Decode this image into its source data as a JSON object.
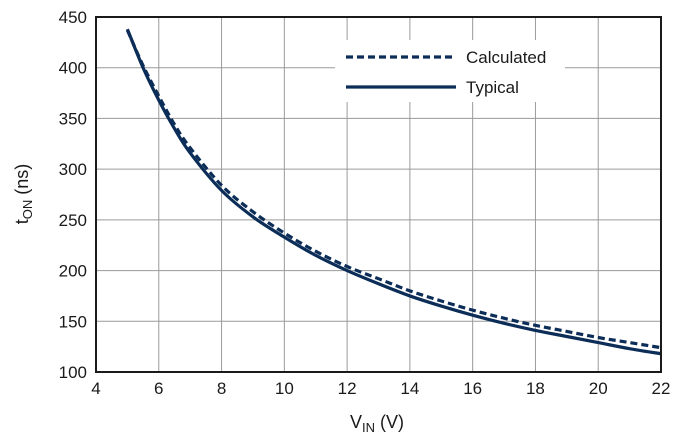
{
  "chart_data": {
    "type": "line",
    "title": "",
    "xlabel_main": "V",
    "xlabel_sub": "IN",
    "xlabel_unit": " (V)",
    "ylabel_main": "t",
    "ylabel_sub": "ON",
    "ylabel_unit": " (ns)",
    "xlim": [
      4,
      22
    ],
    "ylim": [
      100,
      450
    ],
    "xticks": [
      4,
      6,
      8,
      10,
      12,
      14,
      16,
      18,
      20,
      22
    ],
    "yticks": [
      100,
      150,
      200,
      250,
      300,
      350,
      400,
      450
    ],
    "grid": true,
    "legend_position": "top-right",
    "line_color": "#0b2d57",
    "series": [
      {
        "name": "Calculated",
        "style": "dashed",
        "x": [
          5,
          5.5,
          6,
          6.5,
          7,
          8,
          9,
          10,
          11,
          12,
          13,
          14,
          15,
          16,
          17,
          18,
          19,
          20,
          21,
          22
        ],
        "y": [
          437,
          402,
          372,
          344,
          321,
          284,
          258,
          237,
          219,
          204,
          192,
          180,
          170,
          161,
          153,
          146,
          140,
          134,
          129,
          124
        ]
      },
      {
        "name": "Typical",
        "style": "solid",
        "x": [
          5,
          5.5,
          6,
          6.5,
          7,
          8,
          9,
          10,
          11,
          12,
          13,
          14,
          15,
          16,
          17,
          18,
          19,
          20,
          21,
          22
        ],
        "y": [
          438,
          400,
          368,
          340,
          316,
          279,
          253,
          233,
          215,
          200,
          187,
          175,
          165,
          156,
          148,
          141,
          135,
          129,
          123,
          118
        ]
      }
    ]
  }
}
